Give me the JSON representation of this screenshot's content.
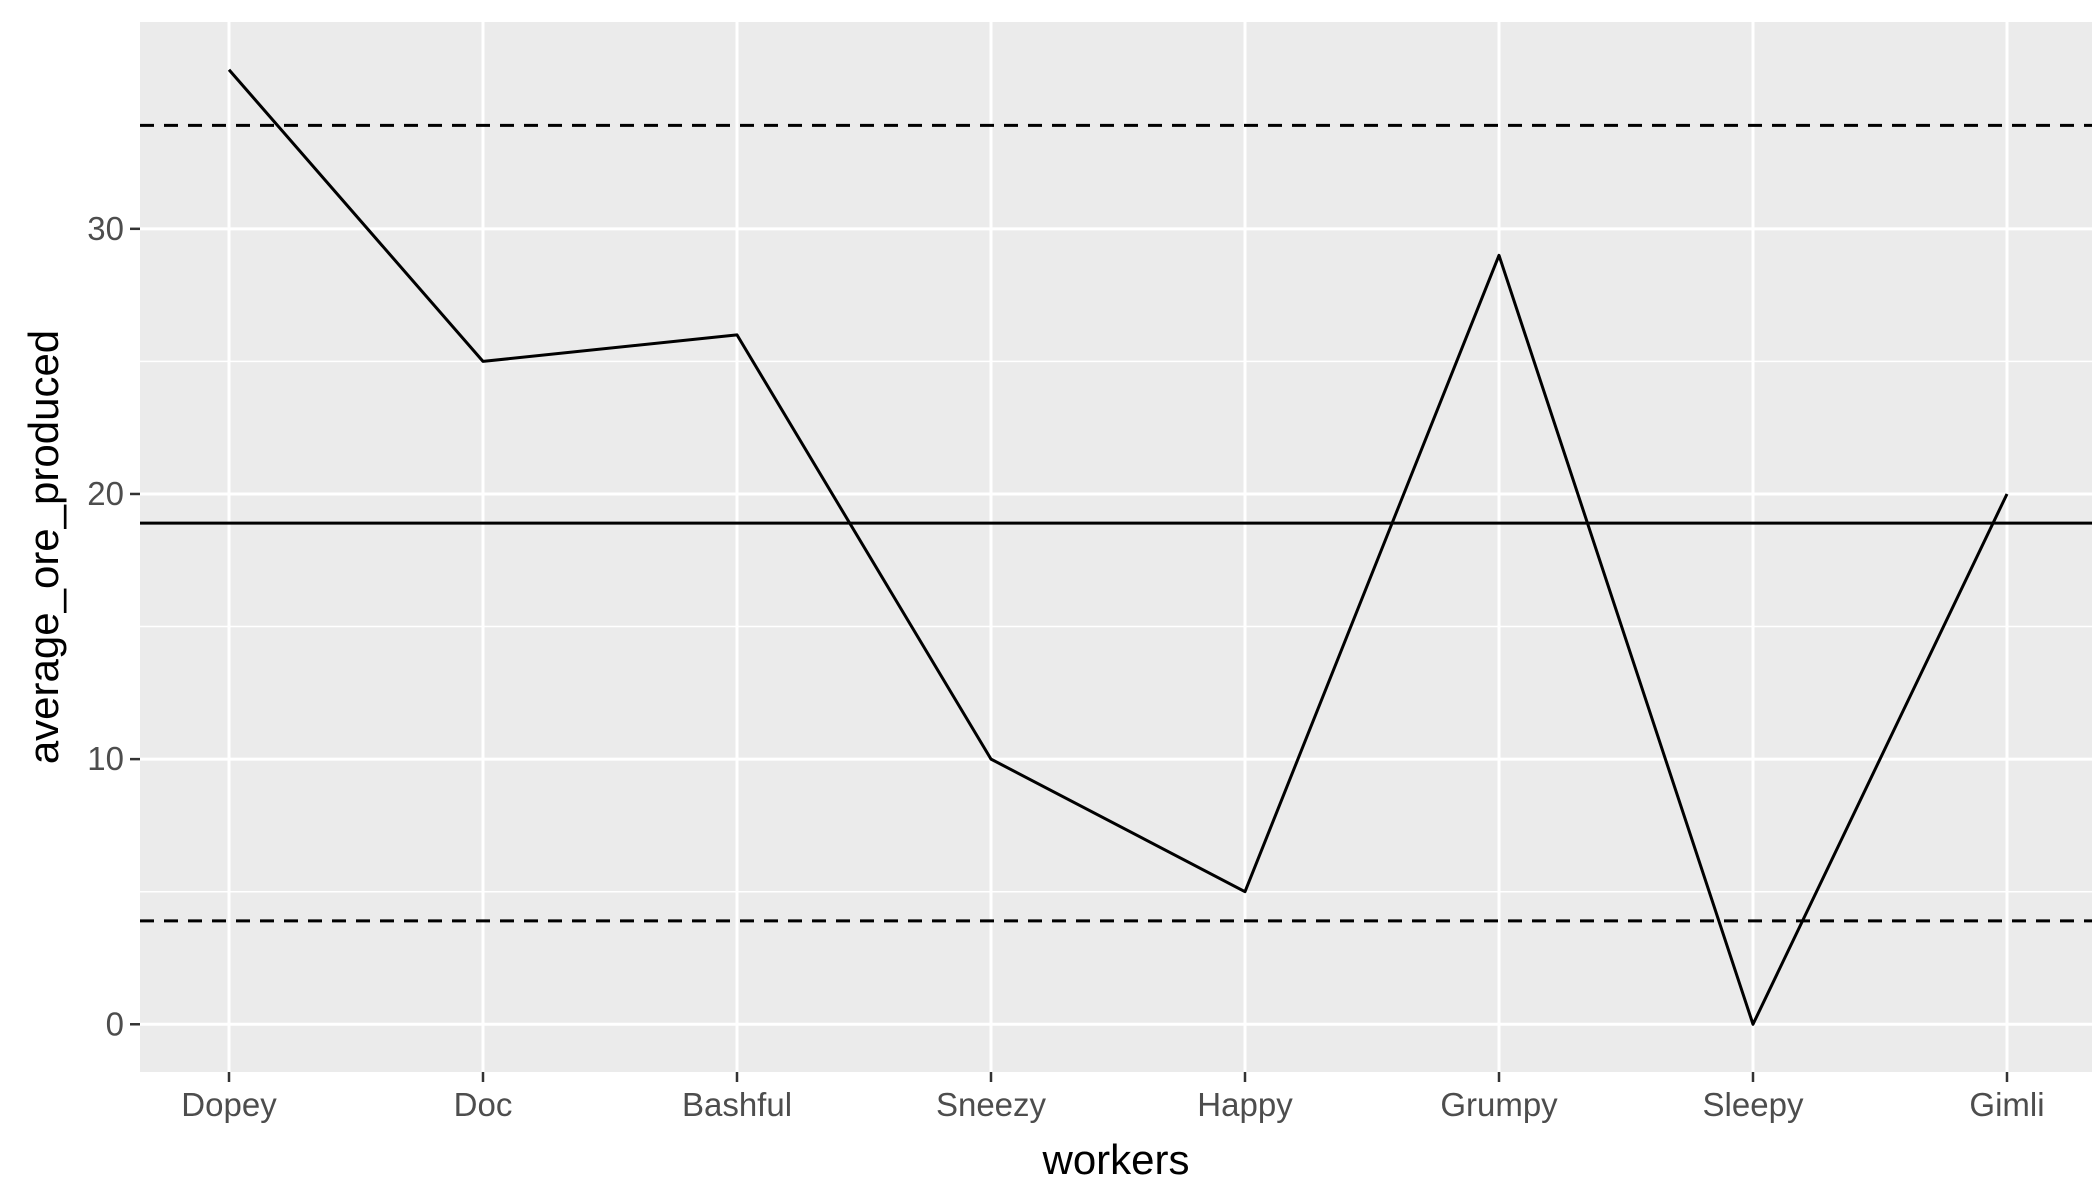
{
  "chart_data": {
    "type": "line",
    "title": "",
    "xlabel": "workers",
    "ylabel": "average_ore_produced",
    "categories": [
      "Dopey",
      "Doc",
      "Bashful",
      "Sneezy",
      "Happy",
      "Grumpy",
      "Sleepy",
      "Gimli"
    ],
    "series": [
      {
        "values": [
          36,
          25,
          26,
          10,
          5,
          29,
          0,
          20
        ]
      }
    ],
    "ylim": [
      -1.8,
      37.8
    ],
    "y_ticks": [
      0,
      10,
      20,
      30
    ],
    "reference_lines": [
      {
        "y": 18.9,
        "style": "solid"
      },
      {
        "y": 33.9,
        "style": "dashed"
      },
      {
        "y": 3.9,
        "style": "dashed"
      }
    ],
    "grid": true,
    "legend": "none",
    "colors": {
      "panel_background": "#ebebeb",
      "grid": "#ffffff",
      "line": "#000000",
      "tick_text": "#4d4d4d",
      "tick_mark": "#333333"
    }
  }
}
